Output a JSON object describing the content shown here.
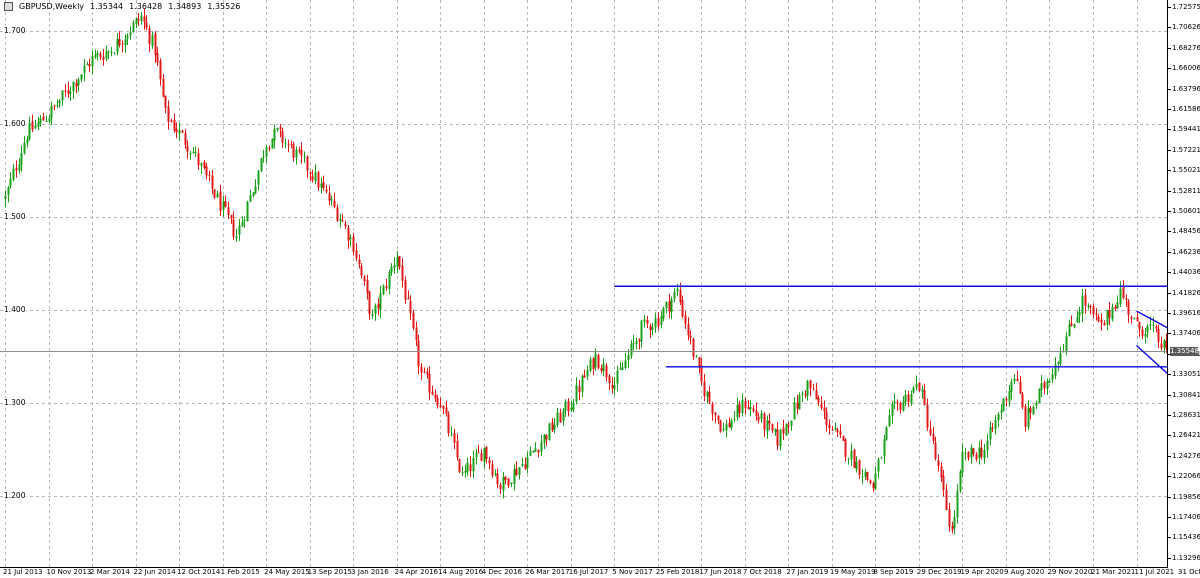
{
  "window": {
    "symbol": "GBPUSD,Weekly",
    "open": "1.35344",
    "high": "1.36428",
    "low": "1.34893",
    "close": "1.35526"
  },
  "price_axis": {
    "labels": [
      "1.72575",
      "1.70626",
      "1.68276",
      "1.66006",
      "1.63796",
      "1.61586",
      "1.59441",
      "1.57221",
      "1.55021",
      "1.52811",
      "1.50601",
      "1.48456",
      "1.46236",
      "1.44036",
      "1.41826",
      "1.39616",
      "1.37406",
      "1.35261",
      "1.33051",
      "1.30841",
      "1.28631",
      "1.26421",
      "1.24276",
      "1.22066",
      "1.19856",
      "1.17406",
      "1.15436",
      "1.13296"
    ],
    "current_price": "1.35548"
  },
  "level_labels": [
    "1.700",
    "1.600",
    "1.500",
    "1.400",
    "1.300",
    "1.200"
  ],
  "time_axis": {
    "labels": [
      "21 Jul 2013",
      "10 Nov 2013",
      "2 Mar 2014",
      "22 Jun 2014",
      "12 Oct 2014",
      "1 Feb 2015",
      "24 May 2015",
      "13 Sep 2015",
      "3 Jan 2016",
      "24 Apr 2016",
      "14 Aug 2016",
      "4 Dec 2016",
      "26 Mar 2017",
      "16 Jul 2017",
      "5 Nov 2017",
      "25 Feb 2018",
      "17 Jun 2018",
      "7 Oct 2018",
      "27 Jan 2019",
      "19 May 2019",
      "8 Sep 2019",
      "29 Dec 2019",
      "19 Apr 2020",
      "9 Aug 2020",
      "29 Nov 2020",
      "21 Mar 2021",
      "11 Jul 2021",
      "31 Oct 2021"
    ]
  },
  "colors": {
    "bull": "#1aa01a",
    "bear": "#e01818",
    "trendline": "#0a0ae6",
    "grid": "#b8b8b8",
    "bid_line": "#8c8c8c"
  },
  "chart_data": {
    "type": "candlestick",
    "x_range": [
      "21 Jul 2013",
      "1 Jan 2022"
    ],
    "y_range": [
      1.13296,
      1.72575
    ],
    "grid": true,
    "keypoints": [
      {
        "date": "21 Jul 2013",
        "price": 1.52
      },
      {
        "date": "15 Sep 2013",
        "price": 1.59
      },
      {
        "date": "10 Nov 2013",
        "price": 1.61
      },
      {
        "date": "2 Mar 2014",
        "price": 1.67
      },
      {
        "date": "20 Apr 2014",
        "price": 1.68
      },
      {
        "date": "11 May 2014",
        "price": 1.69
      },
      {
        "date": "6 Jul 2014",
        "price": 1.715
      },
      {
        "date": "10 Aug 2014",
        "price": 1.68
      },
      {
        "date": "7 Sep 2014",
        "price": 1.61
      },
      {
        "date": "16 Nov 2014",
        "price": 1.57
      },
      {
        "date": "4 Jan 2015",
        "price": 1.53
      },
      {
        "date": "8 Mar 2015",
        "price": 1.48
      },
      {
        "date": "19 Apr 2015",
        "price": 1.53
      },
      {
        "date": "24 May 2015",
        "price": 1.58
      },
      {
        "date": "21 Jun 2015",
        "price": 1.59
      },
      {
        "date": "13 Sep 2015",
        "price": 1.55
      },
      {
        "date": "29 Nov 2015",
        "price": 1.5
      },
      {
        "date": "3 Jan 2016",
        "price": 1.47
      },
      {
        "date": "21 Feb 2016",
        "price": 1.39
      },
      {
        "date": "24 Apr 2016",
        "price": 1.46
      },
      {
        "date": "26 Jun 2016",
        "price": 1.33
      },
      {
        "date": "14 Aug 2016",
        "price": 1.3
      },
      {
        "date": "9 Oct 2016",
        "price": 1.22
      },
      {
        "date": "4 Dec 2016",
        "price": 1.25
      },
      {
        "date": "15 Jan 2017",
        "price": 1.21
      },
      {
        "date": "26 Mar 2017",
        "price": 1.24
      },
      {
        "date": "16 Jul 2017",
        "price": 1.3
      },
      {
        "date": "17 Sep 2017",
        "price": 1.35
      },
      {
        "date": "5 Nov 2017",
        "price": 1.32
      },
      {
        "date": "14 Jan 2018",
        "price": 1.38
      },
      {
        "date": "25 Feb 2018",
        "price": 1.39
      },
      {
        "date": "15 Apr 2018",
        "price": 1.42
      },
      {
        "date": "17 Jun 2018",
        "price": 1.32
      },
      {
        "date": "12 Aug 2018",
        "price": 1.27
      },
      {
        "date": "7 Oct 2018",
        "price": 1.3
      },
      {
        "date": "30 Dec 2018",
        "price": 1.26
      },
      {
        "date": "17 Mar 2019",
        "price": 1.32
      },
      {
        "date": "19 May 2019",
        "price": 1.27
      },
      {
        "date": "1 Sep 2019",
        "price": 1.21
      },
      {
        "date": "20 Oct 2019",
        "price": 1.29
      },
      {
        "date": "29 Dec 2019",
        "price": 1.32
      },
      {
        "date": "22 Mar 2020",
        "price": 1.16
      },
      {
        "date": "19 Apr 2020",
        "price": 1.24
      },
      {
        "date": "14 Jun 2020",
        "price": 1.25
      },
      {
        "date": "30 Aug 2020",
        "price": 1.33
      },
      {
        "date": "27 Sep 2020",
        "price": 1.28
      },
      {
        "date": "29 Nov 2020",
        "price": 1.33
      },
      {
        "date": "21 Feb 2021",
        "price": 1.41
      },
      {
        "date": "11 Apr 2021",
        "price": 1.38
      },
      {
        "date": "30 May 2021",
        "price": 1.42
      },
      {
        "date": "11 Jul 2021",
        "price": 1.38
      },
      {
        "date": "15 Aug 2021",
        "price": 1.38
      },
      {
        "date": "3 Oct 2021",
        "price": 1.35
      },
      {
        "date": "7 Nov 2021",
        "price": 1.345
      },
      {
        "date": "12 Dec 2021",
        "price": 1.32
      },
      {
        "date": "2 Jan 2022",
        "price": 1.3553
      }
    ],
    "trendlines": [
      {
        "name": "resistance",
        "from": {
          "date": "5 Nov 2017",
          "price": 1.4252
        },
        "to": {
          "date": "16 Jan 2022",
          "price": 1.4252
        }
      },
      {
        "name": "support",
        "from": {
          "date": "18 Mar 2018",
          "price": 1.3385
        },
        "to": {
          "date": "16 Jan 2022",
          "price": 1.3385
        }
      },
      {
        "name": "channel-upper",
        "from": {
          "date": "11 Jul 2021",
          "price": 1.3985
        },
        "to": {
          "date": "9 Jan 2022",
          "price": 1.3572
        }
      },
      {
        "name": "channel-lower",
        "from": {
          "date": "11 Jul 2021",
          "price": 1.3615
        },
        "to": {
          "date": "26 Dec 2021",
          "price": 1.2975
        }
      }
    ]
  }
}
